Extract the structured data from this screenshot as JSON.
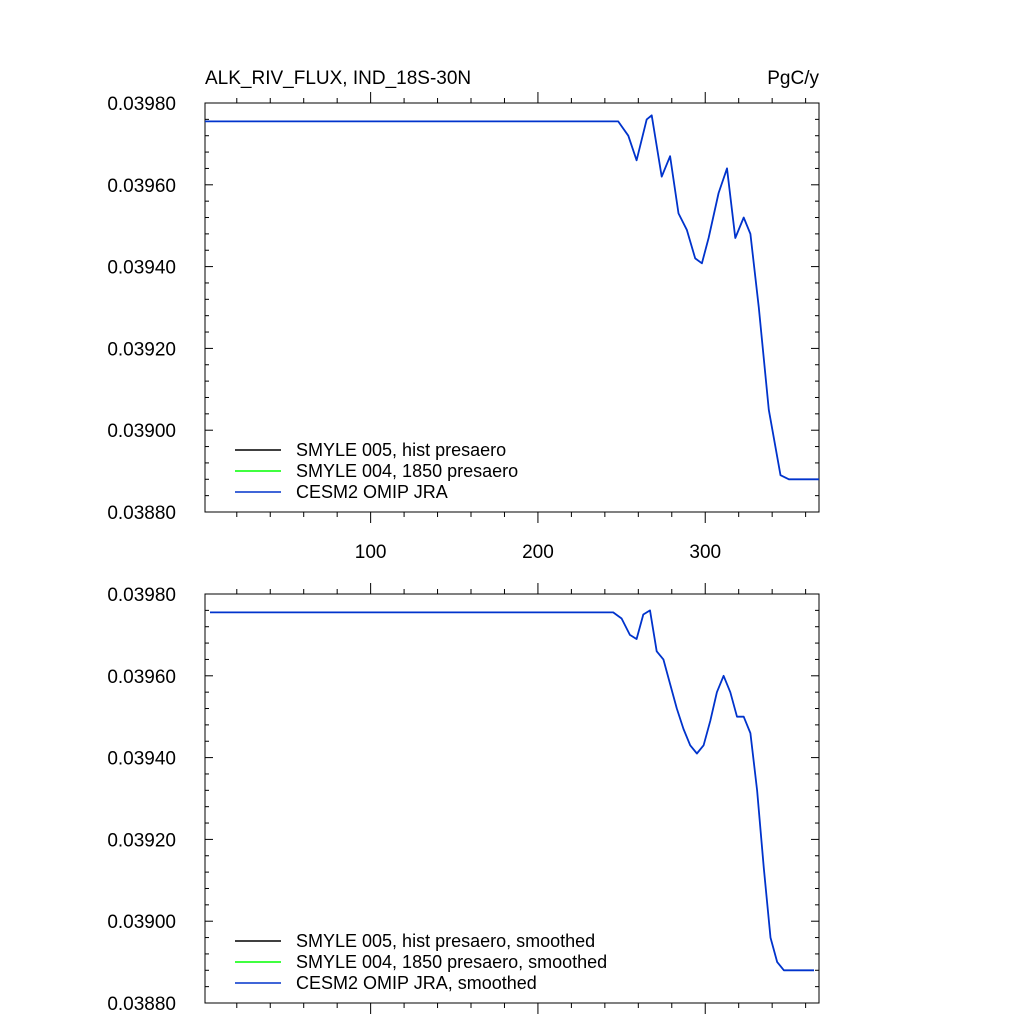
{
  "title_left": "ALK_RIV_FLUX, IND_18S-30N",
  "title_right": "PgC/y",
  "colors": {
    "SMYLE 005": "#000000",
    "SMYLE 004": "#00ff00",
    "CESM2 OMIP JRA": "#0033cc",
    "axis": "#000000"
  },
  "chart_data": [
    {
      "type": "line",
      "title": "ALK_RIV_FLUX, IND_18S-30N",
      "units": "PgC/y",
      "xlim": [
        1,
        368
      ],
      "ylim": [
        0.0388,
        0.0398
      ],
      "x_ticks": [
        100,
        200,
        300
      ],
      "x_tick_labels": [
        "100",
        "200",
        "300"
      ],
      "y_ticks": [
        0.0388,
        0.039,
        0.0392,
        0.0394,
        0.0396,
        0.0398
      ],
      "y_tick_labels": [
        "0.03880",
        "0.03900",
        "0.03920",
        "0.03940",
        "0.03960",
        "0.03980"
      ],
      "legend": [
        "SMYLE 005, hist presaero",
        "SMYLE 004, 1850 presaero",
        "CESM2 OMIP JRA"
      ],
      "legend_position": "bottom-left",
      "series": [
        {
          "name": "CESM2 OMIP JRA",
          "x": [
            1,
            50,
            100,
            150,
            200,
            248,
            254,
            259,
            265,
            268,
            274,
            279,
            284,
            289,
            294,
            298,
            302,
            308,
            313,
            318,
            323,
            327,
            332,
            338,
            345,
            350,
            368
          ],
          "y": [
            0.039755,
            0.039755,
            0.039755,
            0.039755,
            0.039755,
            0.039755,
            0.03972,
            0.03966,
            0.03976,
            0.03977,
            0.03962,
            0.03967,
            0.03953,
            0.03949,
            0.03942,
            0.039408,
            0.03947,
            0.03958,
            0.03964,
            0.03947,
            0.03952,
            0.03948,
            0.0393,
            0.03905,
            0.03889,
            0.03888,
            0.03888
          ]
        }
      ]
    },
    {
      "type": "line",
      "xlim": [
        1,
        368
      ],
      "ylim": [
        0.0388,
        0.0398
      ],
      "x_ticks": [
        100,
        200,
        300
      ],
      "y_ticks": [
        0.0388,
        0.039,
        0.0392,
        0.0394,
        0.0396,
        0.0398
      ],
      "y_tick_labels": [
        "0.03880",
        "0.03900",
        "0.03920",
        "0.03940",
        "0.03960",
        "0.03980"
      ],
      "legend": [
        "SMYLE 005, hist presaero, smoothed",
        "SMYLE 004, 1850 presaero, smoothed",
        "CESM2 OMIP JRA, smoothed"
      ],
      "legend_position": "bottom-left",
      "series": [
        {
          "name": "CESM2 OMIP JRA, smoothed",
          "x": [
            4,
            50,
            100,
            150,
            200,
            245,
            250,
            255,
            259,
            263,
            267,
            271,
            275,
            279,
            283,
            287,
            291,
            295,
            299,
            303,
            307,
            311,
            315,
            319,
            323,
            327,
            331,
            335,
            339,
            343,
            347,
            351,
            365
          ],
          "y": [
            0.039755,
            0.039755,
            0.039755,
            0.039755,
            0.039755,
            0.039755,
            0.03974,
            0.0397,
            0.03969,
            0.03975,
            0.03976,
            0.03966,
            0.03964,
            0.03958,
            0.03952,
            0.03947,
            0.03943,
            0.03941,
            0.03943,
            0.03949,
            0.03956,
            0.0396,
            0.03956,
            0.0395,
            0.0395,
            0.03946,
            0.03932,
            0.03913,
            0.03896,
            0.0389,
            0.03888,
            0.03888,
            0.03888
          ]
        }
      ]
    }
  ]
}
